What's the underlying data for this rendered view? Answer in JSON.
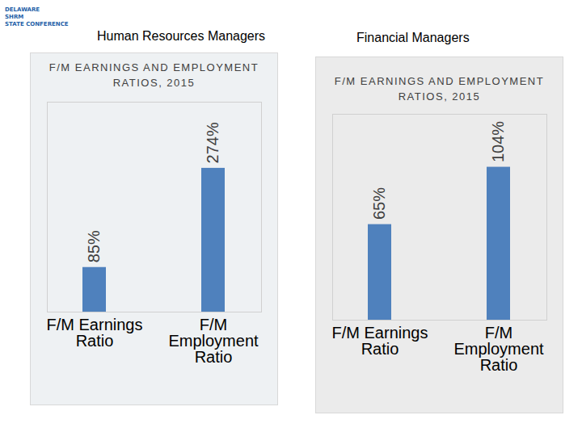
{
  "logo": [
    "DELAWARE",
    "SHRM",
    "STATE CONFERENCE"
  ],
  "chart_data": [
    {
      "type": "bar",
      "subtitle": "Human Resources Managers",
      "title": "F/M EARNINGS AND EMPLOYMENT RATIOS, 2015",
      "categories": [
        "F/M Earnings Ratio",
        "F/M Employment Ratio"
      ],
      "values": [
        85,
        274
      ],
      "value_labels": [
        "85%",
        "274%"
      ],
      "color": "#4f81bd",
      "ylim": [
        0,
        400
      ],
      "data_labels": true,
      "tick_labels": "x"
    },
    {
      "type": "bar",
      "subtitle": "Financial Managers",
      "title": "F/M EARNINGS AND EMPLOYMENT RATIOS, 2015",
      "categories": [
        "F/M Earnings Ratio",
        "F/M Employment Ratio"
      ],
      "values": [
        65,
        104
      ],
      "value_labels": [
        "65%",
        "104%"
      ],
      "color": "#4f81bd",
      "ylim": [
        0,
        140
      ],
      "data_labels": true,
      "tick_labels": "x"
    }
  ]
}
